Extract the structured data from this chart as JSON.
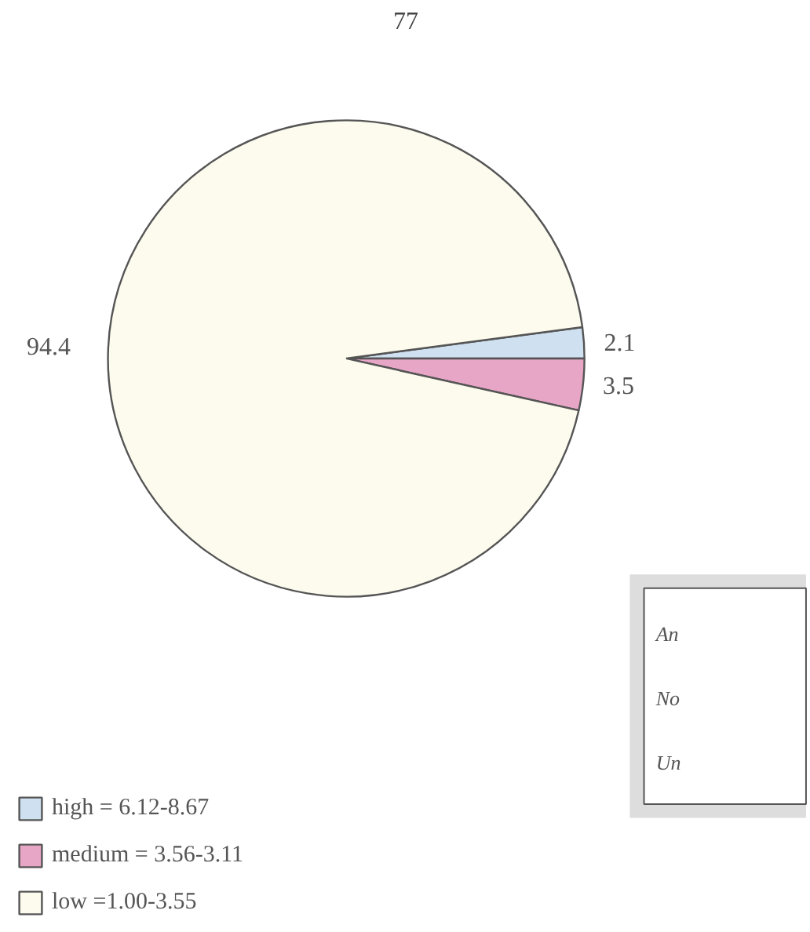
{
  "chart_data": {
    "type": "pie",
    "title": "77",
    "categories": [
      "high = 6.12-8.67",
      "medium = 3.56-3.11",
      "low =1.00-3.55"
    ],
    "values": [
      2.1,
      3.5,
      94.4
    ],
    "colors": [
      "#cfe0f0",
      "#e8a6c6",
      "#fdfbee"
    ],
    "data_labels": true,
    "legend": "bottom left",
    "annotations": [
      "An",
      "No",
      "Un"
    ]
  }
}
